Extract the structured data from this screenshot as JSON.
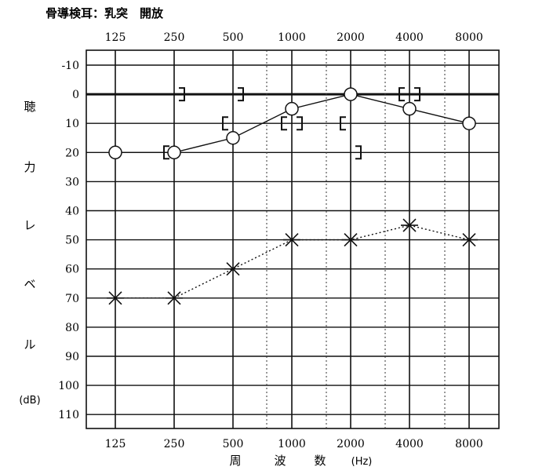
{
  "header": {
    "title": "骨導検耳：乳突　開放"
  },
  "chart_data": {
    "type": "scatter",
    "title": "骨導検耳：乳突　開放",
    "x_categories": [
      "125",
      "250",
      "500",
      "1000",
      "2000",
      "4000",
      "8000"
    ],
    "y_ticks": [
      -10,
      0,
      10,
      20,
      30,
      40,
      50,
      60,
      70,
      80,
      90,
      100,
      110
    ],
    "y_tick_labels": [
      "-10",
      "0",
      "10",
      "20",
      "30",
      "40",
      "50",
      "60",
      "70",
      "80",
      "90",
      "100",
      "110"
    ],
    "ylim": [
      -10,
      110
    ],
    "y_inverted": true,
    "ylabel_chars": [
      "聴",
      "力",
      "レ",
      "ベ",
      "ル"
    ],
    "ylabel_unit": "(dB)",
    "xlabel_chars": [
      "周",
      "波",
      "数"
    ],
    "xlabel_unit": "(Hz)",
    "grid": true,
    "series": [
      {
        "marker": "circle",
        "line": "solid",
        "points": [
          {
            "x": "125",
            "y": 20
          },
          {
            "x": "250",
            "y": 20
          },
          {
            "x": "500",
            "y": 15
          },
          {
            "x": "1000",
            "y": 5
          },
          {
            "x": "2000",
            "y": 0
          },
          {
            "x": "4000",
            "y": 5
          },
          {
            "x": "8000",
            "y": 10
          }
        ]
      },
      {
        "marker": "cross",
        "line": "dotted",
        "points": [
          {
            "x": "125",
            "y": 70
          },
          {
            "x": "250",
            "y": 70
          },
          {
            "x": "500",
            "y": 60
          },
          {
            "x": "1000",
            "y": 50
          },
          {
            "x": "2000",
            "y": 50
          },
          {
            "x": "4000",
            "y": 45
          },
          {
            "x": "8000",
            "y": 50
          }
        ]
      },
      {
        "marker": "bracket-right",
        "line": "none",
        "points": [
          {
            "x": "250",
            "y": 0
          },
          {
            "x": "500",
            "y": 0
          },
          {
            "x": "1000",
            "y": 10
          },
          {
            "x": "2000",
            "y": 20
          },
          {
            "x": "4000",
            "y": 0
          }
        ]
      },
      {
        "marker": "bracket-left",
        "line": "none",
        "points": [
          {
            "x": "250",
            "y": 20
          },
          {
            "x": "500",
            "y": 10
          },
          {
            "x": "1000",
            "y": 10
          },
          {
            "x": "2000",
            "y": 10
          },
          {
            "x": "4000",
            "y": 0
          }
        ]
      }
    ]
  }
}
